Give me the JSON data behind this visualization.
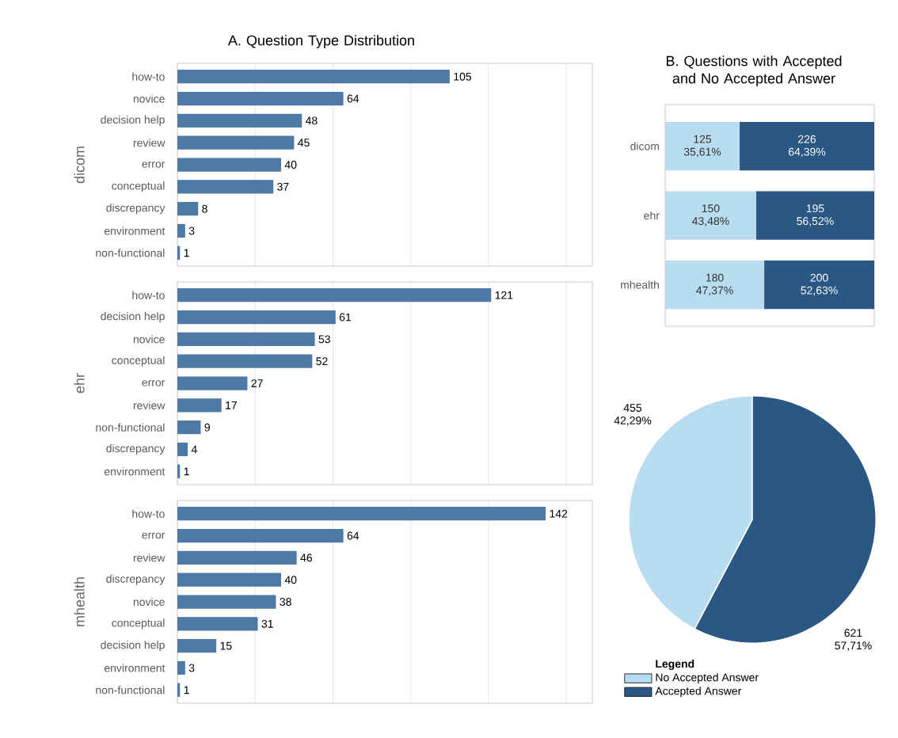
{
  "chart_data": [
    {
      "type": "bar",
      "orientation": "horizontal",
      "title": "A. Question Type Distribution",
      "ylabel": "dicom",
      "categories": [
        "how-to",
        "novice",
        "decision help",
        "review",
        "error",
        "conceptual",
        "discrepancy",
        "environment",
        "non-functional"
      ],
      "values": [
        105,
        64,
        48,
        45,
        40,
        37,
        8,
        3,
        1
      ],
      "color": "#4e79a7",
      "data_labels": true,
      "grid": "x",
      "xlim": [
        0,
        160
      ],
      "xticks": [
        {
          "value": 0,
          "label": null
        },
        {
          "value": 30,
          "label": null
        },
        {
          "value": 60,
          "label": null
        },
        {
          "value": 90,
          "label": null
        },
        {
          "value": 120,
          "label": null
        },
        {
          "value": 150,
          "label": null
        }
      ]
    },
    {
      "type": "bar",
      "orientation": "horizontal",
      "ylabel": "ehr",
      "categories": [
        "how-to",
        "decision help",
        "novice",
        "conceptual",
        "error",
        "review",
        "non-functional",
        "discrepancy",
        "environment"
      ],
      "values": [
        121,
        61,
        53,
        52,
        27,
        17,
        9,
        4,
        1
      ],
      "color": "#4e79a7",
      "data_labels": true,
      "grid": "x",
      "xlim": [
        0,
        160
      ],
      "xticks": [
        {
          "value": 0,
          "label": null
        },
        {
          "value": 30,
          "label": null
        },
        {
          "value": 60,
          "label": null
        },
        {
          "value": 90,
          "label": null
        },
        {
          "value": 120,
          "label": null
        },
        {
          "value": 150,
          "label": null
        }
      ]
    },
    {
      "type": "bar",
      "orientation": "horizontal",
      "ylabel": "mhealth",
      "categories": [
        "how-to",
        "error",
        "review",
        "discrepancy",
        "novice",
        "conceptual",
        "decision help",
        "environment",
        "non-functional"
      ],
      "values": [
        142,
        64,
        46,
        40,
        38,
        31,
        15,
        3,
        1
      ],
      "color": "#4e79a7",
      "data_labels": true,
      "grid": "x",
      "xlim": [
        0,
        160
      ],
      "xticks": [
        {
          "value": 0,
          "label": null
        },
        {
          "value": 30,
          "label": null
        },
        {
          "value": 60,
          "label": null
        },
        {
          "value": 90,
          "label": null
        },
        {
          "value": 120,
          "label": null
        },
        {
          "value": 150,
          "label": null
        }
      ]
    },
    {
      "type": "bar",
      "orientation": "horizontal",
      "stacked": true,
      "title": "B. Questions with Accepted and No Accepted Answer",
      "categories": [
        "dicom",
        "ehr",
        "mhealth"
      ],
      "series": [
        {
          "color": "#b9ddf0",
          "values": [
            35.61,
            43.48,
            47.37
          ],
          "value_labels": [
            "125 35,61%",
            "150 43,48%",
            "180 47,37%"
          ]
        },
        {
          "color": "#2a5783",
          "values": [
            64.39,
            56.52,
            52.63
          ],
          "value_labels": [
            "226 64,39%",
            "195 56,52%",
            "200 52,63%"
          ]
        }
      ]
    },
    {
      "type": "pie",
      "categories": [
        "No Accepted Answer",
        "Accepted Answer"
      ],
      "values": [
        455,
        621
      ],
      "colors": [
        "#b9ddf0",
        "#2a5783"
      ],
      "value_labels": [
        "455 42,29%",
        "621 57,71%"
      ],
      "legend": "bottom left",
      "legend_title": "Legend"
    }
  ]
}
